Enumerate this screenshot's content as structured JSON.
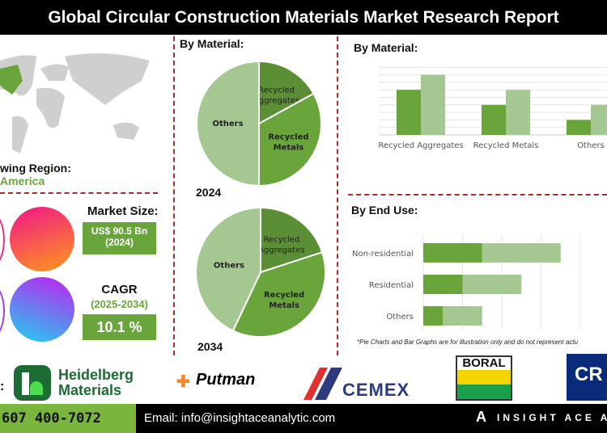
{
  "header": {
    "title": "Global Circular Construction Materials Market Research Report"
  },
  "region": {
    "label": "wing Region:",
    "value": "America"
  },
  "market_size": {
    "label": "Market Size:",
    "value": "US$ 90.5 Bn",
    "year": "(2024)"
  },
  "cagr": {
    "label": "CAGR",
    "period": "(2025-2034)",
    "value": "10.1 %"
  },
  "colors": {
    "dark_green": "#5a8f35",
    "mid_green": "#6aa53c",
    "light_green": "#a5c893",
    "accent_red": "#b02a2a"
  },
  "chart_data": [
    {
      "type": "pie",
      "title": "By Material:",
      "caption": "2024",
      "labels": [
        "Recycled Aggregates",
        "Recycled Metals",
        "Others"
      ],
      "values": [
        17,
        33,
        50
      ]
    },
    {
      "type": "pie",
      "caption": "2034",
      "labels": [
        "Recycled Aggregates",
        "Recycled Metals",
        "Others"
      ],
      "values": [
        20,
        37,
        43
      ]
    },
    {
      "type": "bar",
      "title": "By Material:",
      "categories": [
        "Recycled Aggregates",
        "Recycled Metals",
        "Others"
      ],
      "series": [
        {
          "values": [
            6,
            4,
            2
          ]
        },
        {
          "values": [
            8,
            6,
            4
          ]
        }
      ],
      "ylim": [
        0,
        9
      ],
      "grid": true
    },
    {
      "type": "bar",
      "orientation": "horizontal",
      "stacked": true,
      "title": "By End Use:",
      "categories": [
        "Non-residential",
        "Residential",
        "Others"
      ],
      "series": [
        {
          "values": [
            1.5,
            1.0,
            0.5
          ]
        },
        {
          "values": [
            2.0,
            1.5,
            1.0
          ]
        }
      ],
      "xlim": [
        0,
        4
      ],
      "grid": true
    }
  ],
  "note": "*Pie Charts and Bar Graphs are for illustration only and do not represent actu",
  "logos": {
    "separator": ":",
    "heidelberg_line1": "Heidelberg",
    "heidelberg_line2": "Materials",
    "putman": "Putman",
    "cemex": "CEMEX",
    "boral": "BORAL",
    "cr": "CR"
  },
  "footer": {
    "phone": "607 400-7072",
    "email": "Email: info@insightaceanalytic.com",
    "brand": "INSIGHT ACE A"
  }
}
